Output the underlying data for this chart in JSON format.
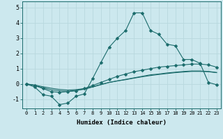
{
  "title": "",
  "xlabel": "Humidex (Indice chaleur)",
  "ylabel": "",
  "bg_color": "#cce8ee",
  "grid_color": "#b8d8de",
  "line_color": "#1a6b6b",
  "x_ticks": [
    0,
    1,
    2,
    3,
    4,
    5,
    6,
    7,
    8,
    9,
    10,
    11,
    12,
    13,
    14,
    15,
    16,
    17,
    18,
    19,
    20,
    21,
    22,
    23
  ],
  "ylim": [
    -1.6,
    5.4
  ],
  "xlim": [
    -0.5,
    23.5
  ],
  "series1_x": [
    0,
    1,
    2,
    3,
    4,
    5,
    6,
    7,
    8,
    9,
    10,
    11,
    12,
    13,
    14,
    15,
    16,
    17,
    18,
    19,
    20,
    21,
    22,
    23
  ],
  "series1_y": [
    0.0,
    -0.2,
    -0.7,
    -0.8,
    -1.35,
    -1.25,
    -0.8,
    -0.65,
    0.35,
    1.4,
    2.4,
    3.0,
    3.5,
    4.65,
    4.65,
    3.5,
    3.25,
    2.6,
    2.5,
    1.6,
    1.6,
    1.35,
    0.1,
    -0.05
  ],
  "series2_x": [
    0,
    1,
    2,
    3,
    4,
    5,
    6,
    7,
    8,
    9,
    10,
    11,
    12,
    13,
    14,
    15,
    16,
    17,
    18,
    19,
    20,
    21,
    22,
    23
  ],
  "series2_y": [
    0.0,
    -0.1,
    -0.3,
    -0.5,
    -0.55,
    -0.5,
    -0.45,
    -0.3,
    -0.1,
    0.1,
    0.3,
    0.5,
    0.65,
    0.8,
    0.9,
    1.0,
    1.1,
    1.15,
    1.2,
    1.25,
    1.3,
    1.3,
    1.25,
    1.1
  ],
  "series3_x": [
    0,
    1,
    2,
    3,
    4,
    5,
    6,
    7,
    8,
    9,
    10,
    11,
    12,
    13,
    14,
    15,
    16,
    17,
    18,
    19,
    20,
    21,
    22,
    23
  ],
  "series3_y": [
    0.0,
    -0.1,
    -0.25,
    -0.38,
    -0.45,
    -0.48,
    -0.42,
    -0.35,
    -0.2,
    -0.05,
    0.1,
    0.2,
    0.3,
    0.4,
    0.5,
    0.6,
    0.65,
    0.72,
    0.77,
    0.82,
    0.85,
    0.85,
    0.82,
    0.75
  ],
  "series4_x": [
    0,
    1,
    2,
    3,
    4,
    5,
    6,
    7,
    8,
    9,
    10,
    11,
    12,
    13,
    14,
    15,
    16,
    17,
    18,
    19,
    20,
    21,
    22,
    23
  ],
  "series4_y": [
    0.0,
    -0.07,
    -0.18,
    -0.28,
    -0.36,
    -0.4,
    -0.37,
    -0.3,
    -0.18,
    -0.03,
    0.1,
    0.2,
    0.28,
    0.38,
    0.47,
    0.55,
    0.62,
    0.68,
    0.74,
    0.78,
    0.82,
    0.82,
    0.8,
    0.74
  ],
  "yticks": [
    -1,
    0,
    1,
    2,
    3,
    4,
    5
  ]
}
